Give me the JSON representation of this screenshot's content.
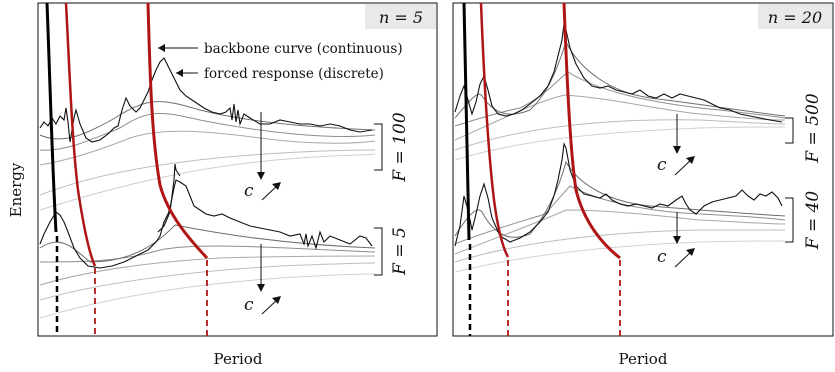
{
  "figure": {
    "ylabel": "Energy",
    "xlabel": "Period"
  },
  "chart_data": [
    {
      "type": "line",
      "panel_label": "n = 5",
      "xlabel": "Period",
      "ylabel": "Energy",
      "grid": false,
      "annotations": {
        "backbone": "backbone curve (continuous)",
        "forced": "forced response (discrete)",
        "c_arrow": "c",
        "F_top": "F = 100",
        "F_bottom": "F = 5"
      },
      "series": [
        {
          "name": "backbone curve (continuous)",
          "color": "#b01515",
          "style": "thick",
          "values": []
        },
        {
          "name": "forced response (discrete)",
          "color": "#111111",
          "style": "jagged",
          "values": []
        }
      ],
      "colors": {
        "backbone": "#b01515",
        "backbone_left": "#000000",
        "forced": "#111111",
        "grey": "#9a9a9a"
      }
    },
    {
      "type": "line",
      "panel_label": "n = 20",
      "xlabel": "Period",
      "grid": false,
      "annotations": {
        "c_arrow": "c",
        "F_top": "F = 500",
        "F_bottom": "F = 40"
      },
      "series": [
        {
          "name": "backbone curve (continuous)",
          "color": "#b01515",
          "style": "thick",
          "values": []
        },
        {
          "name": "forced response (discrete)",
          "color": "#111111",
          "style": "jagged",
          "values": []
        }
      ],
      "colors": {
        "backbone": "#b01515",
        "backbone_left": "#000000",
        "forced": "#111111",
        "grey": "#9a9a9a"
      }
    }
  ]
}
